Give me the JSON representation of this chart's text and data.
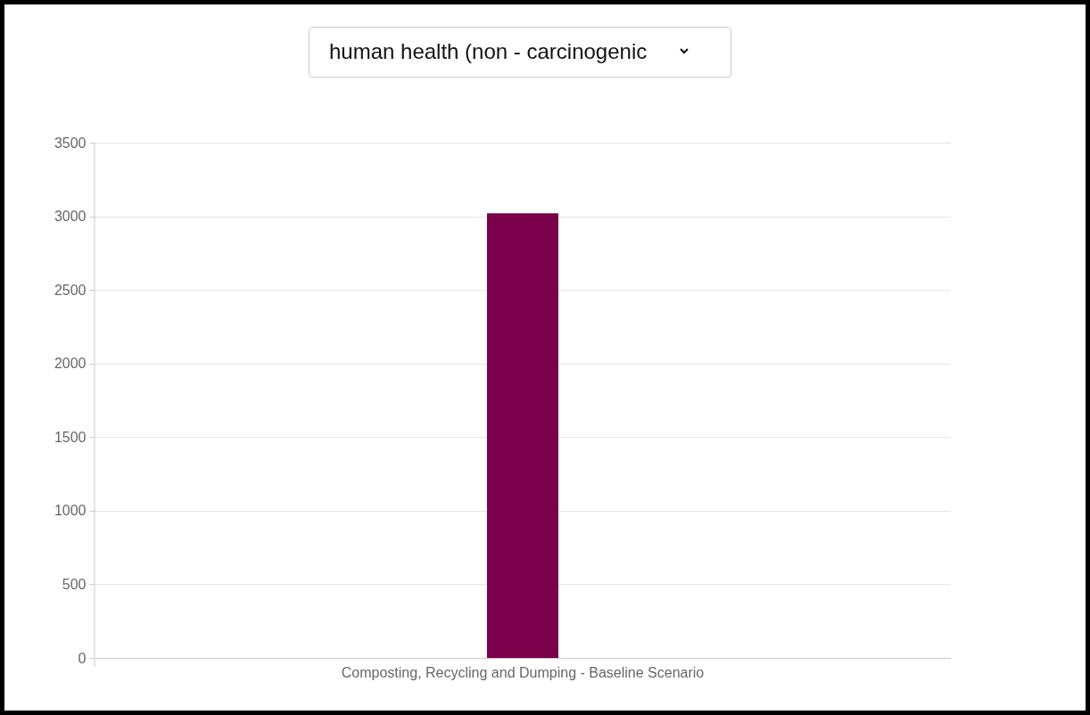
{
  "chart_data": {
    "type": "bar",
    "title": "human health (non - carcinogenic",
    "categories": [
      "Composting, Recycling and Dumping - Baseline Scenario"
    ],
    "values": [
      3020
    ],
    "color": "#7b004c",
    "ylim": [
      0,
      3500
    ],
    "yticks": [
      0,
      500,
      1000,
      1500,
      2000,
      2500,
      3000,
      3500
    ],
    "grid": "y"
  }
}
